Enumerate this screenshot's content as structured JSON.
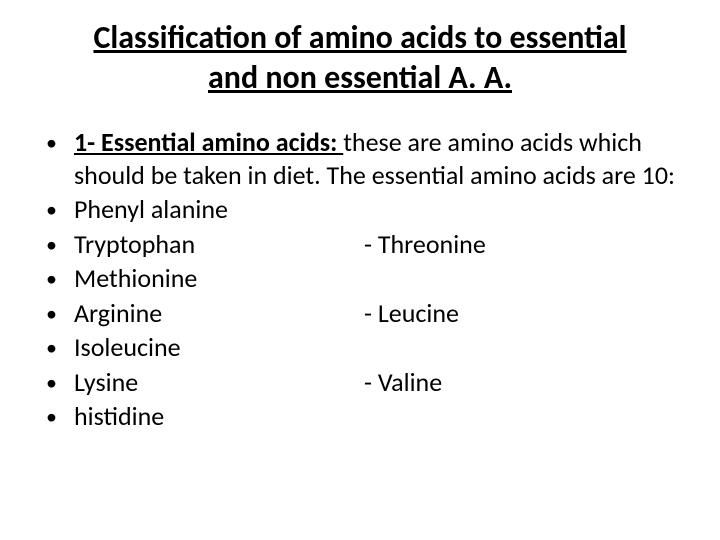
{
  "title": "Classification of amino acids to essential and non essential A. A.",
  "intro": {
    "lead": "1- Essential amino acids: ",
    "rest": "these are amino acids which should be taken in diet. The essential amino acids are 10:"
  },
  "items": [
    {
      "left": "Phenyl alanine",
      "right": ""
    },
    {
      "left": "Tryptophan",
      "right": "-  Threonine"
    },
    {
      "left": "Methionine",
      "right": ""
    },
    {
      "left": "Arginine",
      "right": "- Leucine"
    },
    {
      "left": "Isoleucine",
      "right": ""
    },
    {
      "left": "Lysine",
      "right": "-  Valine"
    },
    {
      "left": "histidine",
      "right": ""
    }
  ],
  "bullet_glyph": "•",
  "colors": {
    "background": "#ffffff",
    "text": "#000000"
  },
  "fonts": {
    "title_size": 32,
    "body_size": 26
  }
}
